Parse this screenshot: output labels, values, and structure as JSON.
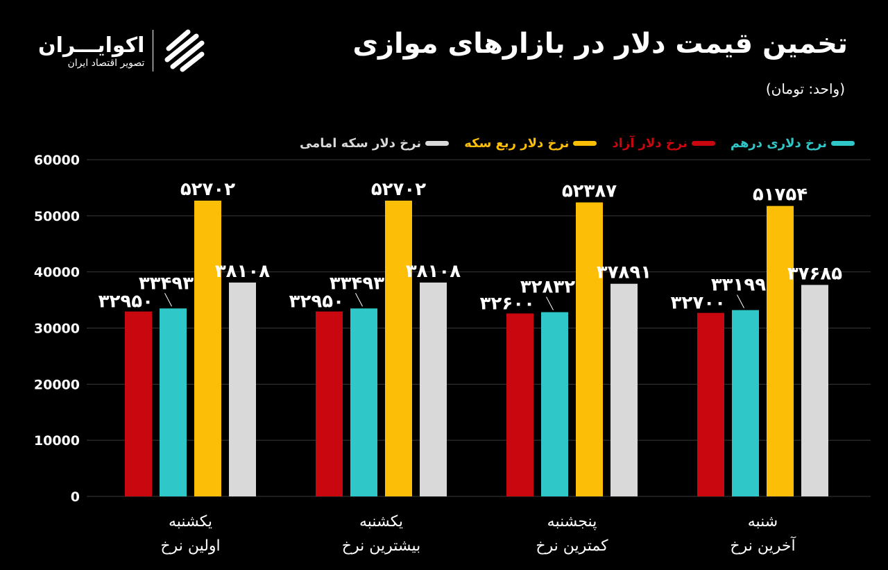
{
  "header": {
    "title": "تخمین قیمت دلار در بازارهای موازی",
    "unit": "(واحد: تومان)"
  },
  "logo": {
    "name": "اکوایـــران",
    "tagline": "تصویر اقتصاد ایران"
  },
  "chart_data": {
    "type": "bar",
    "title": "تخمین قیمت دلار در بازارهای موازی",
    "ylabel": "",
    "ylim": [
      0,
      60000
    ],
    "yticks": [
      "0",
      "10000",
      "20000",
      "30000",
      "40000",
      "50000",
      "60000"
    ],
    "grid": true,
    "legend_position": "top",
    "categories": [
      [
        "یکشنبه",
        "اولین نرخ"
      ],
      [
        "یکشنبه",
        "بیشترین نرخ"
      ],
      [
        "پنجشنبه",
        "کمترین نرخ"
      ],
      [
        "شنبه",
        "آخرین نرخ"
      ]
    ],
    "series": [
      {
        "name": "نرخ دلار آزاد",
        "color": "#c8070e",
        "values": [
          32950,
          32950,
          32600,
          32700
        ]
      },
      {
        "name": "نرخ دلاری درهم",
        "color": "#30c7c8",
        "values": [
          33493,
          33493,
          32832,
          33199
        ]
      },
      {
        "name": "نرخ دلار ربع سکه",
        "color": "#fdbe07",
        "values": [
          52702,
          52702,
          52387,
          51754
        ]
      },
      {
        "name": "نرخ دلار سکه امامی",
        "color": "#d9d9d9",
        "values": [
          38108,
          38108,
          37891,
          37685
        ]
      }
    ],
    "legend_order": [
      1,
      0,
      2,
      3
    ]
  }
}
